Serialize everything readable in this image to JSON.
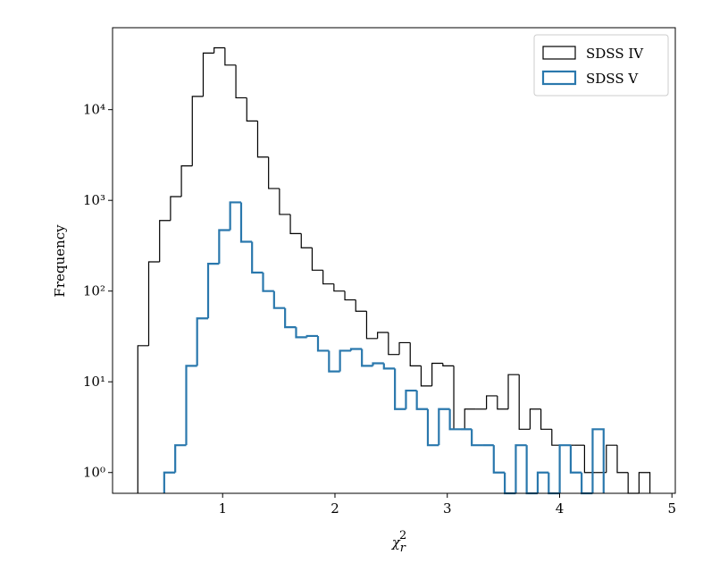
{
  "chart_data": {
    "type": "histogram",
    "xlabel": {
      "base": "χ",
      "sub": "r",
      "sup": "2"
    },
    "ylabel": "Frequency",
    "xlim": [
      0.02,
      5.03
    ],
    "ylim": [
      0.59,
      80000
    ],
    "yscale": "log",
    "xticks": [
      1,
      2,
      3,
      4,
      5
    ],
    "yticks": [
      {
        "value": 1,
        "label": "10⁰"
      },
      {
        "value": 10,
        "label": "10¹"
      },
      {
        "value": 100,
        "label": "10²"
      },
      {
        "value": 1000,
        "label": "10³"
      },
      {
        "value": 10000,
        "label": "10⁴"
      }
    ],
    "legend": "upper right",
    "series": [
      {
        "name": "SDSS IV",
        "color": "#000000",
        "linewidth": 1.2,
        "bins": [
          0.245,
          0.342,
          0.439,
          0.536,
          0.633,
          0.73,
          0.827,
          0.924,
          1.021,
          1.118,
          1.215,
          1.312,
          1.409,
          1.506,
          1.603,
          1.7,
          1.797,
          1.894,
          1.991,
          2.088,
          2.185,
          2.282,
          2.379,
          2.476,
          2.573,
          2.67,
          2.767,
          2.864,
          2.961,
          3.058,
          3.155,
          3.252,
          3.349,
          3.446,
          3.543,
          3.64,
          3.737,
          3.834,
          3.931,
          4.028,
          4.125,
          4.222,
          4.319,
          4.416,
          4.513,
          4.61,
          4.707,
          4.804
        ],
        "values": [
          25,
          210,
          600,
          1100,
          2400,
          14000,
          42000,
          48000,
          31000,
          13500,
          7500,
          3000,
          1350,
          700,
          430,
          300,
          170,
          120,
          100,
          80,
          60,
          30,
          35,
          20,
          27,
          15,
          9,
          16,
          15,
          3,
          5,
          5,
          7,
          5,
          12,
          3,
          5,
          3,
          2,
          2,
          2,
          1,
          1,
          2,
          1,
          0,
          1
        ]
      },
      {
        "name": "SDSS V",
        "color": "#2a78ad",
        "linewidth": 2.2,
        "bins": [
          0.48,
          0.578,
          0.676,
          0.773,
          0.871,
          0.969,
          1.067,
          1.165,
          1.262,
          1.36,
          1.458,
          1.556,
          1.654,
          1.751,
          1.849,
          1.947,
          2.045,
          2.143,
          2.24,
          2.338,
          2.436,
          2.534,
          2.632,
          2.729,
          2.827,
          2.925,
          3.023,
          3.121,
          3.218,
          3.316,
          3.414,
          3.512,
          3.61,
          3.707,
          3.805,
          3.903,
          4.001,
          4.099,
          4.196,
          4.294,
          4.392
        ],
        "values": [
          1,
          2,
          15,
          50,
          200,
          470,
          950,
          350,
          160,
          100,
          65,
          40,
          31,
          32,
          22,
          13,
          22,
          23,
          15,
          16,
          14,
          5,
          8,
          5,
          2,
          5,
          3,
          3,
          2,
          2,
          1,
          0,
          2,
          0,
          1,
          0,
          2,
          1,
          0,
          3
        ]
      }
    ]
  }
}
